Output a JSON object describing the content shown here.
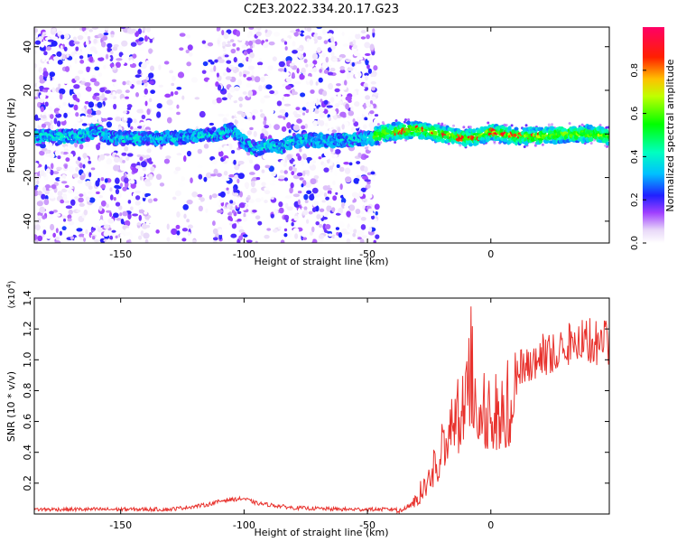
{
  "title": "C2E3.2022.334.20.17.G23",
  "colors": {
    "snr_line": "#e8312c",
    "spectrogram_min": "#ffffff",
    "spectrogram_max": "#ff0066"
  },
  "chart_data": [
    {
      "type": "heatmap",
      "xlabel": "Height of straight line (km)",
      "ylabel": "Frequency (Hz)",
      "xlim": [
        -185,
        48
      ],
      "ylim": [
        -50,
        49
      ],
      "xticks": [
        -150,
        -100,
        -50,
        0
      ],
      "yticks": [
        -40,
        -20,
        0,
        20,
        40
      ],
      "colorbar": {
        "label": "Normalized spectral amplitude",
        "range": [
          0,
          1
        ],
        "ticks": [
          "0.0",
          "0.2",
          "0.4",
          "0.6",
          "0.8"
        ],
        "colormap": "rainbow-on-white"
      },
      "ridge_path": [
        [
          -180,
          -1
        ],
        [
          -165,
          -1
        ],
        [
          -160,
          2
        ],
        [
          -155,
          -2
        ],
        [
          -140,
          -2
        ],
        [
          -130,
          -2
        ],
        [
          -120,
          -1
        ],
        [
          -110,
          0
        ],
        [
          -105,
          2
        ],
        [
          -100,
          -4
        ],
        [
          -95,
          -7
        ],
        [
          -90,
          -5
        ],
        [
          -85,
          -6
        ],
        [
          -80,
          -3
        ],
        [
          -60,
          -3
        ],
        [
          -48,
          -2
        ],
        [
          -45,
          0
        ],
        [
          -40,
          1
        ],
        [
          -30,
          2
        ],
        [
          -20,
          0
        ],
        [
          -15,
          -1
        ],
        [
          -10,
          -2
        ],
        [
          -5,
          -1
        ],
        [
          0,
          1
        ],
        [
          5,
          0
        ],
        [
          10,
          -1
        ],
        [
          20,
          -1
        ],
        [
          30,
          0
        ],
        [
          40,
          0
        ],
        [
          48,
          -1
        ]
      ]
    },
    {
      "type": "line",
      "xlabel": "Height of straight line (km)",
      "ylabel": "SNR (10 * v/v)",
      "y_scale_label": "(x10",
      "y_scale_exponent": "4",
      "y_scale_suffix": ")",
      "xlim": [
        -185,
        48
      ],
      "ylim": [
        0,
        1.4
      ],
      "xticks": [
        -150,
        -100,
        -50,
        0
      ],
      "yticks": [
        "0.2",
        "0.4",
        "0.6",
        "0.8",
        "1.0",
        "1.2",
        "1.4"
      ],
      "envelope": [
        [
          -185,
          0.03
        ],
        [
          -130,
          0.03
        ],
        [
          -115,
          0.06
        ],
        [
          -108,
          0.09
        ],
        [
          -100,
          0.1
        ],
        [
          -95,
          0.07
        ],
        [
          -80,
          0.04
        ],
        [
          -60,
          0.03
        ],
        [
          -40,
          0.03
        ],
        [
          -35,
          0.05
        ],
        [
          -30,
          0.15
        ],
        [
          -25,
          0.35
        ],
        [
          -20,
          0.6
        ],
        [
          -15,
          0.85
        ],
        [
          -10,
          1.0
        ],
        [
          -8,
          1.38
        ],
        [
          -5,
          0.95
        ],
        [
          0,
          0.95
        ],
        [
          5,
          1.0
        ],
        [
          10,
          1.05
        ],
        [
          20,
          1.18
        ],
        [
          30,
          1.25
        ],
        [
          40,
          1.3
        ],
        [
          48,
          1.25
        ]
      ]
    }
  ]
}
